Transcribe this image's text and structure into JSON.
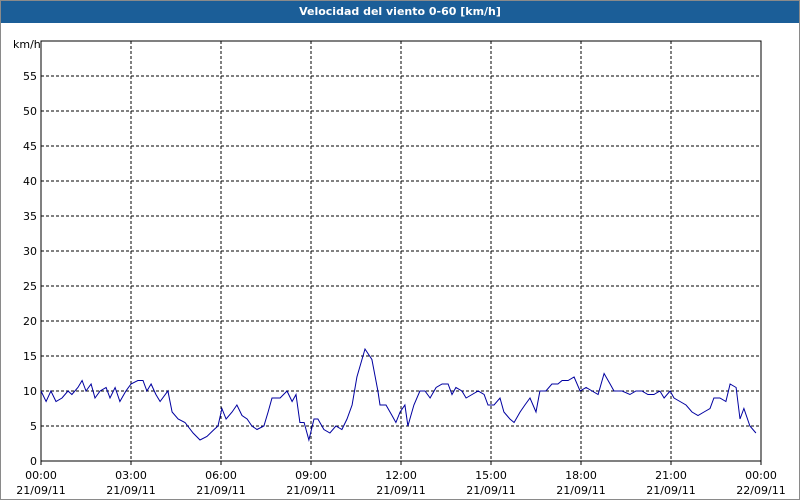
{
  "chart_data": {
    "type": "line",
    "title": "Velocidad del viento 0-60 [km/h]",
    "y_label": "km/h",
    "x": [
      0,
      0.17,
      0.33,
      0.5,
      0.7,
      0.9,
      1.03,
      1.23,
      1.37,
      1.5,
      1.67,
      1.8,
      1.97,
      2.17,
      2.3,
      2.47,
      2.63,
      2.83,
      3,
      3.23,
      3.4,
      3.53,
      3.67,
      3.83,
      3.97,
      4.23,
      4.37,
      4.57,
      4.8,
      5.07,
      5.3,
      5.53,
      5.77,
      5.9,
      6.03,
      6.17,
      6.37,
      6.53,
      6.7,
      6.87,
      7.03,
      7.2,
      7.43,
      7.57,
      7.7,
      7.97,
      8.2,
      8.37,
      8.5,
      8.63,
      8.77,
      8.93,
      9.1,
      9.23,
      9.43,
      9.63,
      9.83,
      10.03,
      10.2,
      10.37,
      10.53,
      10.8,
      11.03,
      11.23,
      11.3,
      11.5,
      11.7,
      11.83,
      11.97,
      12.13,
      12.23,
      12.43,
      12.63,
      12.8,
      12.97,
      13.17,
      13.37,
      13.57,
      13.7,
      13.83,
      14.03,
      14.17,
      14.37,
      14.57,
      14.77,
      14.9,
      15.1,
      15.3,
      15.43,
      15.63,
      15.77,
      15.97,
      16.13,
      16.3,
      16.5,
      16.63,
      16.83,
      17.03,
      17.23,
      17.37,
      17.57,
      17.77,
      17.97,
      18.17,
      18.37,
      18.57,
      18.77,
      18.97,
      19.1,
      19.37,
      19.63,
      19.83,
      20.03,
      20.23,
      20.43,
      20.63,
      20.77,
      20.97,
      21.1,
      21.3,
      21.5,
      21.7,
      21.9,
      22.1,
      22.3,
      22.43,
      22.63,
      22.83,
      22.97,
      23.17,
      23.3,
      23.43,
      23.63,
      23.83
    ],
    "series": [
      {
        "name": "Velocidad del viento",
        "color": "#0000a0",
        "values": [
          10,
          8.5,
          10,
          8.5,
          9,
          10,
          9.5,
          10.5,
          11.5,
          10,
          11,
          9,
          10,
          10.5,
          9,
          10.5,
          8.5,
          10,
          11,
          11.5,
          11.5,
          10,
          11,
          9.5,
          8.5,
          10,
          7,
          6,
          5.5,
          4,
          3,
          3.5,
          4.5,
          5,
          7.5,
          6,
          7,
          8,
          6.5,
          6,
          5,
          4.5,
          5,
          7,
          9,
          9,
          10,
          8.5,
          9.5,
          5.5,
          5.5,
          3,
          6,
          6,
          4.5,
          4,
          5,
          4.5,
          6,
          8,
          12,
          16,
          14.5,
          10,
          8,
          8,
          6.5,
          5.5,
          7,
          8,
          5,
          8,
          10,
          10,
          9,
          10.5,
          11,
          11,
          9.5,
          10.5,
          10,
          9,
          9.5,
          10,
          9.5,
          8,
          8,
          9,
          7,
          6,
          5.5,
          7,
          8,
          9,
          7,
          10,
          10,
          11,
          11,
          11.5,
          11.5,
          12,
          10,
          10.5,
          10,
          9.5,
          12.5,
          11,
          10,
          10,
          9.5,
          10,
          10,
          9.5,
          9.5,
          10,
          9,
          10,
          9,
          8.5,
          8,
          7,
          6.5,
          7,
          7.5,
          9,
          9,
          8.5,
          11,
          10.5,
          6,
          7.5,
          5,
          4
        ]
      }
    ],
    "xlim": [
      0,
      24
    ],
    "xticks": [
      {
        "value": 0,
        "label": [
          "00:00",
          "21/09/11"
        ]
      },
      {
        "value": 3,
        "label": [
          "03:00",
          "21/09/11"
        ]
      },
      {
        "value": 6,
        "label": [
          "06:00",
          "21/09/11"
        ]
      },
      {
        "value": 9,
        "label": [
          "09:00",
          "21/09/11"
        ]
      },
      {
        "value": 12,
        "label": [
          "12:00",
          "21/09/11"
        ]
      },
      {
        "value": 15,
        "label": [
          "15:00",
          "21/09/11"
        ]
      },
      {
        "value": 18,
        "label": [
          "18:00",
          "21/09/11"
        ]
      },
      {
        "value": 21,
        "label": [
          "21:00",
          "21/09/11"
        ]
      },
      {
        "value": 24,
        "label": [
          "00:00",
          "22/09/11"
        ]
      }
    ],
    "ylim": [
      0,
      60
    ],
    "yticks": [
      0,
      5,
      10,
      15,
      20,
      25,
      30,
      35,
      40,
      45,
      50,
      55
    ],
    "grid": true
  }
}
